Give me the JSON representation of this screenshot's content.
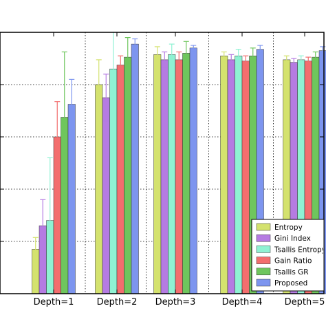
{
  "chart_data": {
    "type": "bar",
    "categories": [
      "Depth=1",
      "Depth=2",
      "Depth=3",
      "Depth=4",
      "Depth=5"
    ],
    "ylim": [
      0,
      1.0
    ],
    "grid": true,
    "legend_position": "bottom-right",
    "series": [
      {
        "name": "Entropy",
        "color": "#d4e26e",
        "values": [
          0.17,
          0.8,
          0.915,
          0.91,
          0.895
        ],
        "err": [
          0.045,
          0.095,
          0.03,
          0.015,
          0.015
        ]
      },
      {
        "name": "Gini Index",
        "color": "#b57be2",
        "values": [
          0.26,
          0.75,
          0.895,
          0.895,
          0.885
        ],
        "err": [
          0.1,
          0.09,
          0.03,
          0.02,
          0.015
        ]
      },
      {
        "name": "Tsallis Entropy",
        "color": "#8ff2d3",
        "values": [
          0.28,
          0.86,
          0.915,
          0.91,
          0.895
        ],
        "err": [
          0.24,
          0.155,
          0.04,
          0.025,
          0.015
        ]
      },
      {
        "name": "Gain Ratio",
        "color": "#f36e6e",
        "values": [
          0.6,
          0.875,
          0.895,
          0.89,
          0.89
        ],
        "err": [
          0.135,
          0.035,
          0.03,
          0.02,
          0.015
        ]
      },
      {
        "name": "Tsallis GR",
        "color": "#6fc65d",
        "values": [
          0.675,
          0.905,
          0.92,
          0.91,
          0.905
        ],
        "err": [
          0.25,
          0.075,
          0.045,
          0.03,
          0.02
        ]
      },
      {
        "name": "Proposed",
        "color": "#7d95ef",
        "values": [
          0.725,
          0.955,
          0.94,
          0.935,
          0.93
        ],
        "err": [
          0.095,
          0.02,
          0.01,
          0.015,
          0.015
        ]
      }
    ]
  }
}
